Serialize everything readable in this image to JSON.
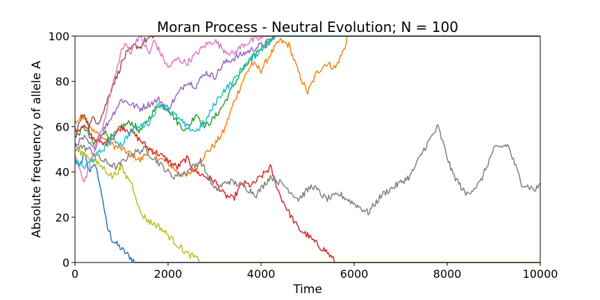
{
  "chart_data": {
    "type": "line",
    "title": "Moran Process - Neutral Evolution; N = 100",
    "xlabel": "Time",
    "ylabel": "Absolute frequency of allele A",
    "xlim": [
      0,
      10000
    ],
    "ylim": [
      0,
      100
    ],
    "xticks": [
      "0",
      "2000",
      "4000",
      "6000",
      "8000",
      "10000"
    ],
    "yticks": [
      "0",
      "20",
      "40",
      "60",
      "80",
      "100"
    ],
    "grid": false,
    "legend": "none",
    "series": [
      {
        "color": "#1f77b4",
        "x": [
          0,
          100,
          200,
          300,
          400,
          500,
          550,
          600,
          650,
          700,
          750,
          800,
          900,
          1000,
          1100,
          1200,
          1300,
          1400,
          10000
        ],
        "y": [
          45,
          42,
          48,
          40,
          44,
          38,
          32,
          28,
          20,
          15,
          13,
          10,
          8,
          6,
          4,
          2,
          0,
          0,
          0
        ]
      },
      {
        "color": "#ff7f0e",
        "x": [
          0,
          200,
          400,
          600,
          800,
          1000,
          1200,
          1400,
          1600,
          1800,
          2000,
          2200,
          2400,
          2600,
          2800,
          3000,
          3200,
          3400,
          3600,
          3800,
          4000,
          4200,
          4400,
          4600,
          4800,
          5000,
          5200,
          5400,
          5600,
          5800,
          5850,
          10000
        ],
        "y": [
          62,
          65,
          58,
          55,
          52,
          50,
          48,
          45,
          50,
          46,
          44,
          40,
          38,
          42,
          48,
          52,
          58,
          70,
          80,
          88,
          85,
          92,
          98,
          96,
          84,
          75,
          84,
          88,
          86,
          95,
          100,
          100
        ]
      },
      {
        "color": "#2ca02c",
        "x": [
          0,
          200,
          400,
          600,
          800,
          1000,
          1200,
          1400,
          1600,
          1800,
          2000,
          2200,
          2400,
          2600,
          2800,
          3000,
          3200,
          3400,
          3600,
          3800,
          4000,
          4200,
          4300,
          10000
        ],
        "y": [
          55,
          60,
          52,
          58,
          55,
          60,
          62,
          58,
          64,
          70,
          68,
          62,
          58,
          66,
          60,
          64,
          70,
          78,
          85,
          90,
          95,
          98,
          100,
          100
        ]
      },
      {
        "color": "#d62728",
        "x": [
          0,
          200,
          400,
          600,
          800,
          1000,
          1200,
          1400,
          1600,
          1800,
          2000,
          2200,
          2400,
          2600,
          2800,
          3000,
          3200,
          3400,
          3600,
          3800,
          4000,
          4200,
          4400,
          4600,
          4800,
          5000,
          5200,
          5400,
          5600,
          10000
        ],
        "y": [
          58,
          60,
          55,
          52,
          55,
          60,
          58,
          54,
          50,
          48,
          45,
          42,
          46,
          40,
          38,
          36,
          30,
          28,
          35,
          34,
          38,
          42,
          30,
          22,
          15,
          12,
          8,
          5,
          0,
          0
        ]
      },
      {
        "color": "#9467bd",
        "x": [
          0,
          200,
          400,
          600,
          800,
          1000,
          1200,
          1400,
          1600,
          1800,
          2000,
          2200,
          2400,
          2600,
          2800,
          3000,
          3200,
          3400,
          3600,
          3800,
          4000,
          4200,
          4300,
          10000
        ],
        "y": [
          52,
          55,
          50,
          58,
          65,
          72,
          70,
          68,
          70,
          72,
          68,
          74,
          80,
          78,
          84,
          82,
          88,
          90,
          92,
          94,
          96,
          98,
          100,
          100
        ]
      },
      {
        "color": "#8c564b",
        "x": [
          0,
          100,
          200,
          300,
          400,
          500,
          600,
          700,
          800,
          900,
          1000,
          1100,
          1200,
          1300,
          1400,
          1500,
          1600,
          1700,
          1800,
          10000
        ],
        "y": [
          55,
          62,
          66,
          60,
          64,
          62,
          66,
          72,
          78,
          82,
          88,
          92,
          94,
          96,
          95,
          98,
          99,
          100,
          100,
          100
        ]
      },
      {
        "color": "#e377c2",
        "x": [
          0,
          100,
          200,
          300,
          400,
          500,
          600,
          700,
          800,
          900,
          1000,
          1100,
          1200,
          1300,
          1400,
          1500,
          1600,
          1700,
          1800,
          2000,
          2200,
          2400,
          2600,
          2800,
          3000,
          3200,
          3400,
          3600,
          3800,
          4000,
          4100,
          10000
        ],
        "y": [
          48,
          40,
          36,
          42,
          48,
          55,
          60,
          70,
          78,
          85,
          94,
          96,
          93,
          98,
          100,
          96,
          92,
          98,
          94,
          86,
          90,
          88,
          92,
          96,
          98,
          94,
          92,
          96,
          98,
          99,
          100,
          100
        ]
      },
      {
        "color": "#7f7f7f",
        "x": [
          0,
          300,
          600,
          900,
          1200,
          1500,
          1800,
          2100,
          2400,
          2700,
          3000,
          3300,
          3600,
          3900,
          4200,
          4500,
          4800,
          5100,
          5400,
          5700,
          6000,
          6300,
          6600,
          6900,
          7200,
          7500,
          7800,
          8100,
          8400,
          8700,
          9000,
          9300,
          9600,
          9900,
          10000
        ],
        "y": [
          52,
          50,
          45,
          42,
          48,
          50,
          44,
          38,
          40,
          45,
          32,
          36,
          34,
          30,
          38,
          34,
          28,
          34,
          28,
          30,
          26,
          22,
          30,
          34,
          38,
          50,
          60,
          40,
          30,
          35,
          50,
          52,
          35,
          32,
          35
        ]
      },
      {
        "color": "#bcbd22",
        "x": [
          0,
          200,
          400,
          600,
          800,
          900,
          1000,
          1100,
          1200,
          1300,
          1400,
          1500,
          1600,
          1800,
          2000,
          2200,
          2400,
          2600,
          2700,
          10000
        ],
        "y": [
          50,
          48,
          45,
          42,
          38,
          40,
          42,
          38,
          36,
          30,
          22,
          20,
          18,
          16,
          12,
          8,
          4,
          2,
          0,
          0
        ]
      },
      {
        "color": "#17becf",
        "x": [
          0,
          200,
          400,
          600,
          800,
          1000,
          1200,
          1400,
          1600,
          1800,
          2000,
          2200,
          2400,
          2600,
          2800,
          3000,
          3200,
          3400,
          3600,
          3800,
          4000,
          4200,
          4300,
          10000
        ],
        "y": [
          45,
          42,
          46,
          50,
          55,
          52,
          58,
          60,
          62,
          70,
          68,
          64,
          60,
          58,
          62,
          70,
          76,
          80,
          86,
          90,
          94,
          98,
          100,
          100
        ]
      }
    ]
  }
}
